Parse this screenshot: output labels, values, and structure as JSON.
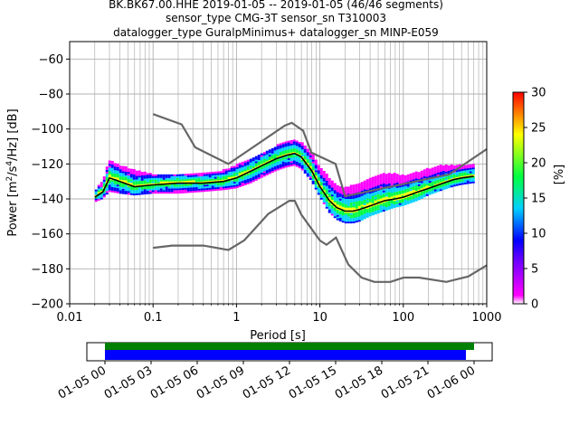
{
  "title_lines": [
    "BK.BK67.00.HHE   2019-01-05 -- 2019-01-05  (46/46 segments)",
    "sensor_type CMG-3T sensor_sn T310003",
    "datalogger_type GuralpMinimus+ datalogger_sn MINP-E059"
  ],
  "colorbar": {
    "label": "[%]",
    "ticks": [
      "0",
      "5",
      "10",
      "15",
      "20",
      "25",
      "30"
    ],
    "range": [
      0,
      30
    ],
    "colors": [
      "#ffffff",
      "#ff00ff",
      "#0000ff",
      "#00d0ff",
      "#00ff40",
      "#ffff00",
      "#ff8000",
      "#ff0000"
    ]
  },
  "timeline": {
    "ticks": [
      "01-05 00",
      "01-05 03",
      "01-05 06",
      "01-05 09",
      "01-05 12",
      "01-05 15",
      "01-05 18",
      "01-05 21",
      "01-06 00"
    ],
    "data_bar_color": "#008000",
    "used_bar_color": "#0000ff"
  },
  "chart_data": {
    "type": "heatmap",
    "xlabel": "Period [s]",
    "ylabel_parts": [
      "Power [m",
      "2",
      "/s",
      "4",
      "/Hz] [dB]"
    ],
    "xscale": "log",
    "xlim": [
      0.01,
      1000
    ],
    "ylim": [
      -200,
      -50
    ],
    "grid": true,
    "x_tick_labels": [
      "0.01",
      "0.1",
      "1",
      "10",
      "100",
      "1000"
    ],
    "x_ticks": [
      0.01,
      0.1,
      1,
      10,
      100,
      1000
    ],
    "y_tick_labels": [
      "−200",
      "−180",
      "−160",
      "−140",
      "−120",
      "−100",
      "−80",
      "−60"
    ],
    "y_ticks": [
      -200,
      -180,
      -160,
      -140,
      -120,
      -100,
      -80,
      -60
    ],
    "nhnm": {
      "period": [
        0.1,
        0.22,
        0.32,
        0.8,
        3.8,
        4.6,
        6.3,
        7.9,
        15.4,
        20,
        354.8,
        1000
      ],
      "db": [
        -91.5,
        -97.4,
        -110.5,
        -120,
        -98,
        -96.5,
        -101,
        -113.5,
        -120,
        -138.5,
        -126,
        -111.5
      ]
    },
    "nlnm": {
      "period": [
        0.1,
        0.17,
        0.4,
        0.8,
        1.24,
        2.4,
        4.3,
        5,
        6,
        10,
        12,
        15.6,
        21.9,
        31.6,
        45,
        70,
        101,
        154,
        328,
        600,
        1000
      ],
      "db": [
        -168,
        -166.7,
        -166.7,
        -169.2,
        -163.7,
        -148.6,
        -141.1,
        -141.1,
        -149,
        -163.8,
        -166.2,
        -162.1,
        -177.5,
        -185,
        -187.5,
        -187.5,
        -185,
        -185,
        -187.5,
        -184.4,
        -178
      ]
    },
    "mode_line": {
      "period": [
        0.02,
        0.025,
        0.03,
        0.04,
        0.06,
        0.1,
        0.2,
        0.4,
        0.7,
        1,
        1.5,
        2,
        3,
        4,
        5,
        6,
        8,
        10,
        13,
        16,
        20,
        25,
        30,
        40,
        60,
        80,
        100,
        150,
        200,
        300,
        400,
        500,
        700
      ],
      "db": [
        -139,
        -136,
        -128,
        -130,
        -133,
        -132,
        -131,
        -131,
        -130,
        -128,
        -124,
        -121,
        -117,
        -115,
        -114,
        -116,
        -124,
        -133,
        -141,
        -145,
        -147,
        -147,
        -146,
        -144,
        -141,
        -140,
        -139,
        -136,
        -134,
        -131,
        -129,
        -128,
        -127
      ]
    },
    "percentile_band": {
      "period": [
        0.02,
        0.025,
        0.03,
        0.04,
        0.06,
        0.1,
        0.2,
        0.4,
        0.7,
        1,
        1.5,
        2,
        3,
        4,
        5,
        6,
        8,
        10,
        13,
        16,
        20,
        25,
        30,
        40,
        60,
        80,
        100,
        150,
        200,
        300,
        400,
        500,
        700
      ],
      "low": [
        -142,
        -140,
        -136,
        -137,
        -138,
        -137,
        -137,
        -136,
        -135,
        -134,
        -131,
        -128,
        -124,
        -122,
        -121,
        -123,
        -130,
        -139,
        -148,
        -152,
        -154,
        -154,
        -153,
        -150,
        -147,
        -145,
        -144,
        -141,
        -138,
        -135,
        -133,
        -132,
        -131
      ],
      "high": [
        -136,
        -130,
        -118,
        -121,
        -124,
        -126,
        -126,
        -126,
        -124,
        -121,
        -117,
        -114,
        -110,
        -107,
        -106,
        -108,
        -114,
        -122,
        -128,
        -132,
        -134,
        -132,
        -131,
        -128,
        -126,
        -126,
        -127,
        -125,
        -123,
        -121,
        -121,
        -121,
        -121
      ]
    }
  }
}
